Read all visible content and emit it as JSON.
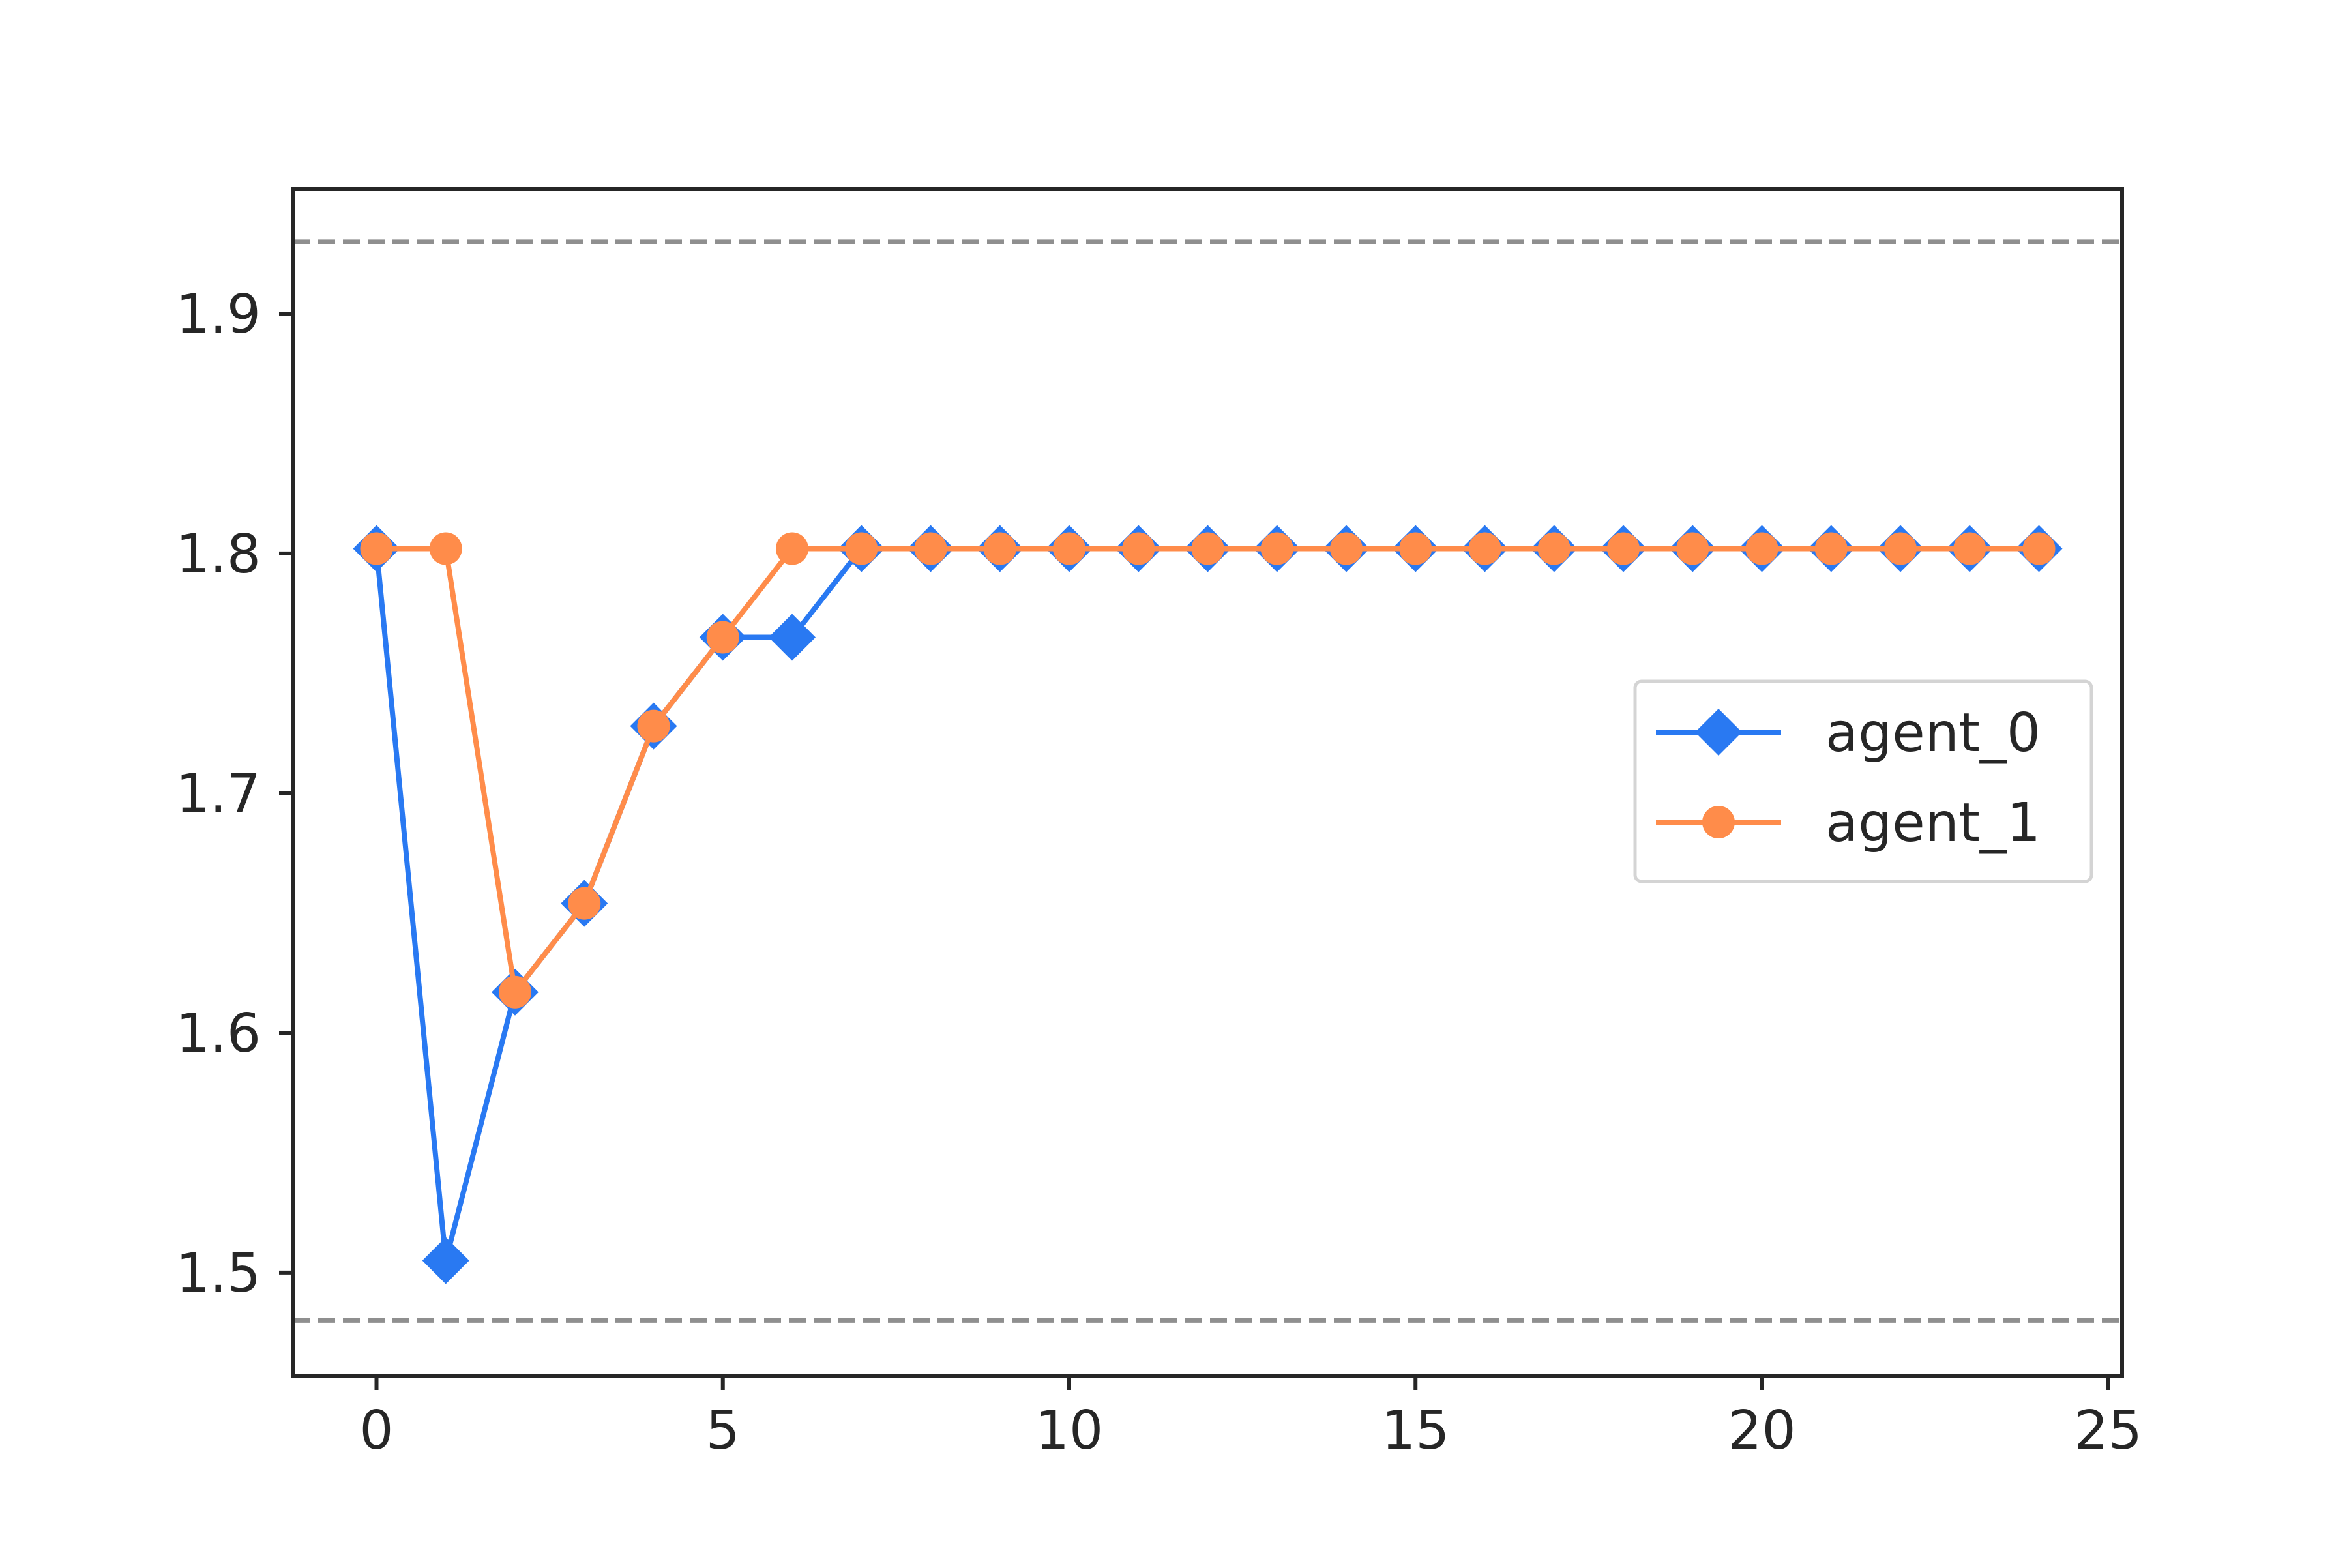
{
  "chart_data": {
    "type": "line",
    "title": "",
    "xlabel": "",
    "ylabel": "",
    "xlim": [
      -1.2,
      25.2
    ],
    "ylim": [
      1.457,
      1.952
    ],
    "xticks": [
      0,
      5,
      10,
      15,
      20,
      25
    ],
    "yticks": [
      1.5,
      1.6,
      1.7,
      1.8,
      1.9
    ],
    "xtick_labels": [
      "0",
      "5",
      "10",
      "15",
      "20",
      "25"
    ],
    "ytick_labels": [
      "1.5",
      "1.6",
      "1.7",
      "1.8",
      "1.9"
    ],
    "grid": false,
    "legend_position": "center-right",
    "reference_lines": [
      {
        "axis": "y",
        "value": 1.93,
        "style": "dashed",
        "color": "#8f8f8f"
      },
      {
        "axis": "y",
        "value": 1.48,
        "style": "dashed",
        "color": "#8f8f8f"
      }
    ],
    "x": [
      0,
      1,
      2,
      3,
      4,
      5,
      6,
      7,
      8,
      9,
      10,
      11,
      12,
      13,
      14,
      15,
      16,
      17,
      18,
      19,
      20,
      21,
      22,
      23,
      24
    ],
    "series": [
      {
        "name": "agent_0",
        "color": "#2979f2",
        "marker": "diamond",
        "values": [
          1.802,
          1.505,
          1.617,
          1.654,
          1.728,
          1.765,
          1.765,
          1.802,
          1.802,
          1.802,
          1.802,
          1.802,
          1.802,
          1.802,
          1.802,
          1.802,
          1.802,
          1.802,
          1.802,
          1.802,
          1.802,
          1.802,
          1.802,
          1.802,
          1.802
        ]
      },
      {
        "name": "agent_1",
        "color": "#ff8c4a",
        "marker": "circle",
        "values": [
          1.802,
          1.802,
          1.617,
          1.654,
          1.728,
          1.765,
          1.802,
          1.802,
          1.802,
          1.802,
          1.802,
          1.802,
          1.802,
          1.802,
          1.802,
          1.802,
          1.802,
          1.802,
          1.802,
          1.802,
          1.802,
          1.802,
          1.802,
          1.802,
          1.802
        ]
      }
    ]
  }
}
